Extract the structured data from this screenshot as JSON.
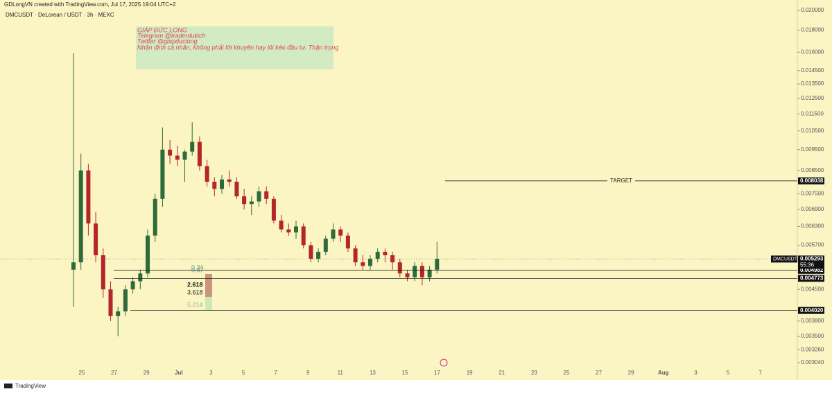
{
  "header": {
    "credit": "GDLongVN created with TradingView.com, Jul 17, 2025 19:04 UTC+2",
    "symbol_line": "DMCUSDT · DeLorean / USDT · 3h · MEXC",
    "footer": "TradingView"
  },
  "note": {
    "lines": [
      "GIÁP ĐỨC LONG",
      "Telegram @traderdukich",
      "Twitter @giapduclong",
      "Nhận định cá nhân, không phải lời khuyên hay lôi kéo đầu tư. Thận trọng"
    ]
  },
  "chart_data": {
    "type": "candlestick",
    "log_scale": true,
    "up_color": "#2e6b3a",
    "down_color": "#b3262a",
    "categories": [
      "25",
      "27",
      "29",
      "Jul",
      "3",
      "5",
      "7",
      "9",
      "11",
      "13",
      "15",
      "17",
      "19",
      "21",
      "23",
      "25",
      "27",
      "29",
      "Aug",
      "3",
      "5",
      "7"
    ],
    "ylim": [
      0.00304,
      0.02
    ],
    "yticks": [
      {
        "value": 0.00304,
        "label": "0.003040"
      },
      {
        "value": 0.00326,
        "label": "0.003260"
      },
      {
        "value": 0.0035,
        "label": "0.003500"
      },
      {
        "value": 0.0038,
        "label": "0.003800"
      },
      {
        "value": 0.0045,
        "label": "0.004500"
      },
      {
        "value": 0.0057,
        "label": "0.005700"
      },
      {
        "value": 0.0063,
        "label": "0.006300"
      },
      {
        "value": 0.0069,
        "label": "0.006900"
      },
      {
        "value": 0.0075,
        "label": "0.007500"
      },
      {
        "value": 0.0085,
        "label": "0.008500"
      },
      {
        "value": 0.0095,
        "label": "0.009500"
      },
      {
        "value": 0.0105,
        "label": "0.010500"
      },
      {
        "value": 0.0115,
        "label": "0.011500"
      },
      {
        "value": 0.0125,
        "label": "0.012500"
      },
      {
        "value": 0.0135,
        "label": "0.013500"
      },
      {
        "value": 0.0145,
        "label": "0.014500"
      },
      {
        "value": 0.016,
        "label": "0.016000"
      },
      {
        "value": 0.018,
        "label": "0.018000"
      },
      {
        "value": 0.02,
        "label": "0.020000"
      }
    ],
    "open": [
      0.005,
      0.0052,
      0.0085,
      0.0064,
      0.0054,
      0.0045,
      0.0039,
      0.004,
      0.0045,
      0.0047,
      0.0049,
      0.006,
      0.0073,
      0.0095,
      0.0092,
      0.009,
      0.0094,
      0.0099,
      0.0087,
      0.008,
      0.0077,
      0.0081,
      0.008,
      0.0074,
      0.0071,
      0.0072,
      0.0076,
      0.0073,
      0.0065,
      0.0062,
      0.0061,
      0.0063,
      0.0057,
      0.0053,
      0.0055,
      0.0059,
      0.0062,
      0.006,
      0.0056,
      0.0052,
      0.0051,
      0.0053,
      0.0055,
      0.0054,
      0.0052,
      0.0049,
      0.0048,
      0.0051,
      0.0048,
      0.005
    ],
    "high": [
      0.0159,
      0.0093,
      0.0088,
      0.0068,
      0.0056,
      0.0047,
      0.0041,
      0.0046,
      0.0048,
      0.005,
      0.0062,
      0.0075,
      0.0107,
      0.01,
      0.0097,
      0.0095,
      0.011,
      0.0102,
      0.009,
      0.0082,
      0.0083,
      0.0085,
      0.0082,
      0.0077,
      0.0074,
      0.0078,
      0.0078,
      0.0074,
      0.0067,
      0.0064,
      0.0065,
      0.0064,
      0.0058,
      0.0056,
      0.006,
      0.0064,
      0.0063,
      0.0061,
      0.0057,
      0.0054,
      0.0054,
      0.0056,
      0.0056,
      0.0055,
      0.0053,
      0.005,
      0.0052,
      0.0052,
      0.0051,
      0.0058
    ],
    "low": [
      0.0041,
      0.005,
      0.006,
      0.0052,
      0.0043,
      0.0038,
      0.0035,
      0.0039,
      0.0044,
      0.0045,
      0.0048,
      0.0058,
      0.007,
      0.0088,
      0.0087,
      0.008,
      0.0092,
      0.0085,
      0.0078,
      0.0074,
      0.0075,
      0.0078,
      0.0073,
      0.0069,
      0.0067,
      0.007,
      0.0071,
      0.0064,
      0.0061,
      0.006,
      0.0059,
      0.0056,
      0.0052,
      0.0052,
      0.0054,
      0.0058,
      0.0058,
      0.0055,
      0.0051,
      0.005,
      0.005,
      0.0052,
      0.0052,
      0.005,
      0.0048,
      0.0047,
      0.0047,
      0.0046,
      0.0047,
      0.0049
    ],
    "close": [
      0.0052,
      0.0085,
      0.0064,
      0.0054,
      0.0045,
      0.0039,
      0.004,
      0.0045,
      0.0047,
      0.0049,
      0.006,
      0.0073,
      0.0095,
      0.0092,
      0.009,
      0.0094,
      0.0099,
      0.0087,
      0.008,
      0.0077,
      0.0081,
      0.008,
      0.0074,
      0.0071,
      0.0072,
      0.0076,
      0.0073,
      0.0065,
      0.0062,
      0.0061,
      0.0063,
      0.0057,
      0.0053,
      0.0055,
      0.0059,
      0.0062,
      0.006,
      0.0056,
      0.0052,
      0.0051,
      0.0053,
      0.0055,
      0.0054,
      0.0052,
      0.0049,
      0.0048,
      0.0051,
      0.0048,
      0.005,
      0.0053
    ],
    "levels": [
      {
        "value": 0.008038,
        "label": "0.008038",
        "text": "TARGET"
      },
      {
        "value": 0.004982,
        "label": "0.004982"
      },
      {
        "value": 0.004773,
        "label": "0.004773"
      },
      {
        "value": 0.00402,
        "label": "0.004020"
      }
    ],
    "last": {
      "value": 0.005293,
      "label": "0.005293",
      "name": "DMCUSDT",
      "countdown": "55:36"
    },
    "fib_labels": [
      "0.34",
      "0.87",
      "2.618",
      "3.618",
      "5.214"
    ]
  }
}
